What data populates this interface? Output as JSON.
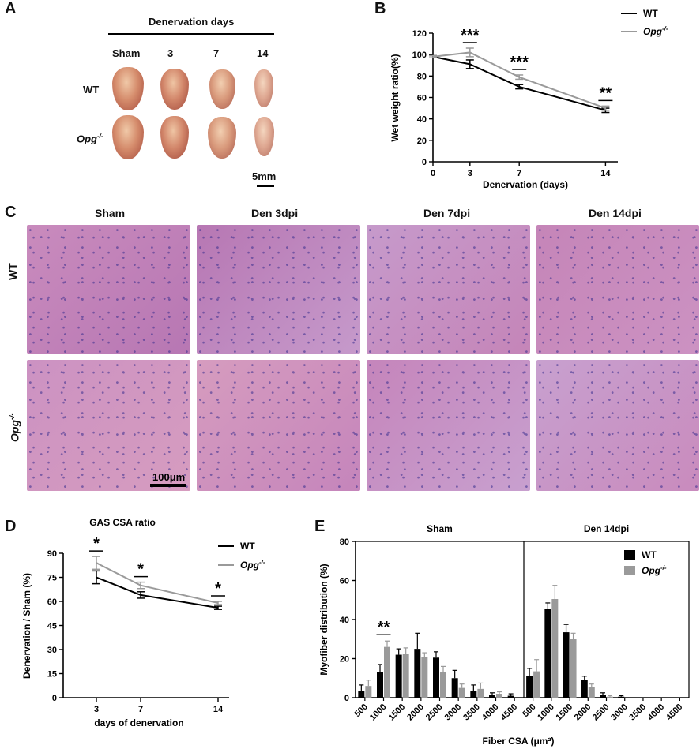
{
  "panels": {
    "A": "A",
    "B": "B",
    "C": "C",
    "D": "D",
    "E": "E"
  },
  "panelA": {
    "title": "Denervation days",
    "columns": [
      "Sham",
      "3",
      "7",
      "14"
    ],
    "rows": [
      "WT",
      "Opg"
    ],
    "row_sup": "-/-",
    "scale": "5mm"
  },
  "panelC": {
    "columns": [
      "Sham",
      "Den 3dpi",
      "Den 7dpi",
      "Den 14dpi"
    ],
    "rows": [
      "WT",
      "Opg"
    ],
    "row_sup": "-/-",
    "scale": "100μm",
    "tints": [
      "#c98bbd",
      "#b777b3",
      "#c69acb",
      "#c585b8",
      "#cc92c2",
      "#d69cbf",
      "#c585bb",
      "#c8a0cf"
    ]
  },
  "colors": {
    "wt": "#000000",
    "opg": "#9a9a9a"
  },
  "chart_data": [
    {
      "type": "line",
      "ylabel": "Wet weight ratio(%)",
      "xlabel": "Denervation (days)",
      "x": [
        0,
        3,
        7,
        14
      ],
      "xticks": [
        0,
        3,
        7,
        14
      ],
      "xlim": [
        0,
        15
      ],
      "ylim": [
        0,
        120
      ],
      "yticks": [
        0,
        20,
        40,
        60,
        80,
        100,
        120
      ],
      "series": [
        {
          "name": "WT",
          "values": [
            98,
            91,
            70,
            48
          ],
          "err": [
            1,
            4,
            2,
            2
          ]
        },
        {
          "name": "Opg",
          "values": [
            98,
            102,
            79,
            50
          ],
          "err": [
            1,
            4,
            2,
            2
          ]
        }
      ],
      "legend": [
        "WT",
        "Opg"
      ],
      "legend_sup": "-/-",
      "annotations": [
        {
          "x": 3,
          "text": "***"
        },
        {
          "x": 7,
          "text": "***"
        },
        {
          "x": 14,
          "text": "**"
        }
      ]
    },
    {
      "type": "line",
      "title": "GAS CSA ratio",
      "ylabel": "Denervation / Sham (%)",
      "xlabel": "days of denervation",
      "x": [
        3,
        7,
        14
      ],
      "xticks": [
        3,
        7,
        14
      ],
      "xlim": [
        0,
        15
      ],
      "ylim": [
        0,
        90
      ],
      "yticks": [
        0,
        15,
        30,
        45,
        60,
        75,
        90
      ],
      "series": [
        {
          "name": "WT",
          "values": [
            75,
            64,
            56
          ],
          "err": [
            4,
            2,
            1
          ]
        },
        {
          "name": "Opg",
          "values": [
            84,
            70,
            59
          ],
          "err": [
            4,
            2,
            1
          ]
        }
      ],
      "legend": [
        "WT",
        "Opg"
      ],
      "legend_sup": "-/-",
      "annotations": [
        {
          "x": 3,
          "text": "*"
        },
        {
          "x": 7,
          "text": "*"
        },
        {
          "x": 14,
          "text": "*"
        }
      ]
    },
    {
      "type": "bar",
      "ylabel": "Myofiber distribution (%)",
      "xlabel": "Fiber CSA (μm²)",
      "group_titles": [
        "Sham",
        "Den 14dpi"
      ],
      "categories": [
        "500",
        "1000",
        "1500",
        "2000",
        "2500",
        "3000",
        "3500",
        "4000",
        "4500"
      ],
      "ylim": [
        0,
        80
      ],
      "yticks": [
        0,
        20,
        40,
        60,
        80
      ],
      "groups": [
        {
          "name": "Sham",
          "series": [
            {
              "name": "WT",
              "values": [
                3.5,
                13,
                22,
                25,
                20.5,
                10,
                3.5,
                1.5,
                1
              ],
              "err": [
                3,
                4,
                3,
                8,
                3,
                4,
                3,
                1,
                1
              ]
            },
            {
              "name": "Opg",
              "values": [
                6,
                26,
                22.5,
                21,
                13,
                5,
                4.5,
                2,
                0
              ],
              "err": [
                3,
                3,
                3,
                2,
                3,
                2,
                3,
                1,
                0
              ]
            }
          ],
          "annotations": [
            {
              "category": "1000",
              "text": "**"
            }
          ]
        },
        {
          "name": "Den 14dpi",
          "series": [
            {
              "name": "WT",
              "values": [
                11,
                45.5,
                33.5,
                9,
                1.5,
                0.5,
                0,
                0,
                0
              ],
              "err": [
                4,
                3,
                4,
                2,
                1,
                0.5,
                0,
                0,
                0
              ]
            },
            {
              "name": "Opg",
              "values": [
                13.5,
                50.5,
                30,
                5.5,
                0.5,
                0,
                0,
                0,
                0
              ],
              "err": [
                6,
                7,
                3,
                1.5,
                0.5,
                0,
                0,
                0,
                0
              ]
            }
          ]
        }
      ],
      "legend": [
        "WT",
        "Opg"
      ],
      "legend_sup": "-/-"
    }
  ]
}
